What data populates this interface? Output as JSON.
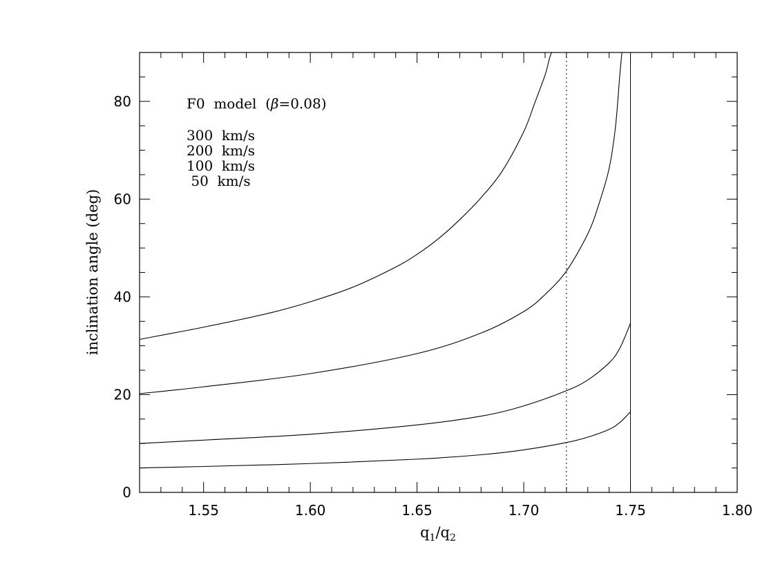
{
  "chart_data": {
    "type": "line",
    "xlabel": {
      "base1": "q",
      "sub1": "2",
      "slash": "/",
      "base2": "q",
      "sub2": "1"
    },
    "ylabel": "inclination angle (deg)",
    "xlim": [
      1.52,
      1.8
    ],
    "ylim": [
      0,
      90
    ],
    "x_ticks": [
      1.55,
      1.6,
      1.65,
      1.7,
      1.75,
      1.8
    ],
    "x_tick_labels": [
      "1.55",
      "1.60",
      "1.65",
      "1.70",
      "1.75",
      "1.80"
    ],
    "y_ticks": [
      0,
      20,
      40,
      60,
      80
    ],
    "y_tick_labels": [
      "0",
      "20",
      "40",
      "60",
      "80"
    ],
    "grid": false,
    "annotation": {
      "prefix": "F0  model  (",
      "symbol": "β",
      "suffix": "=0.08)"
    },
    "legend_lines": [
      "300  km/s",
      "200  km/s",
      "100  km/s",
      " 50  km/s"
    ],
    "series": [
      {
        "x": [
          1.52,
          1.55,
          1.58,
          1.6,
          1.62,
          1.64,
          1.65,
          1.66,
          1.67,
          1.68,
          1.69,
          1.7,
          1.705,
          1.71,
          1.712,
          1.713
        ],
        "y": [
          31.3,
          33.8,
          36.6,
          39.0,
          42.0,
          46.1,
          48.7,
          51.9,
          55.8,
          60.3,
          65.8,
          73.8,
          79.5,
          85.4,
          88.7,
          90
        ]
      },
      {
        "x": [
          1.52,
          1.55,
          1.6,
          1.65,
          1.68,
          1.7,
          1.71,
          1.72,
          1.73,
          1.735,
          1.74,
          1.743,
          1.745,
          1.746
        ],
        "y": [
          20.2,
          21.6,
          24.3,
          28.4,
          32.6,
          37.0,
          40.5,
          45.3,
          52.9,
          58.7,
          66.3,
          74.9,
          85.4,
          90
        ]
      },
      {
        "x": [
          1.52,
          1.55,
          1.6,
          1.65,
          1.68,
          1.7,
          1.72,
          1.73,
          1.74,
          1.745,
          1.75
        ],
        "y": [
          10.0,
          10.7,
          11.9,
          13.8,
          15.6,
          17.7,
          20.8,
          23.0,
          26.5,
          29.5,
          34.6
        ]
      },
      {
        "x": [
          1.52,
          1.55,
          1.6,
          1.65,
          1.68,
          1.7,
          1.72,
          1.73,
          1.74,
          1.745,
          1.75
        ],
        "y": [
          5.0,
          5.3,
          5.9,
          6.8,
          7.7,
          8.7,
          10.2,
          11.3,
          12.9,
          14.3,
          16.5
        ]
      }
    ],
    "vlines": [
      {
        "x": 1.72,
        "style": "dotted"
      },
      {
        "x": 1.75,
        "style": "solid"
      }
    ],
    "colors": {
      "line": "#000000",
      "background": "#ffffff"
    }
  }
}
